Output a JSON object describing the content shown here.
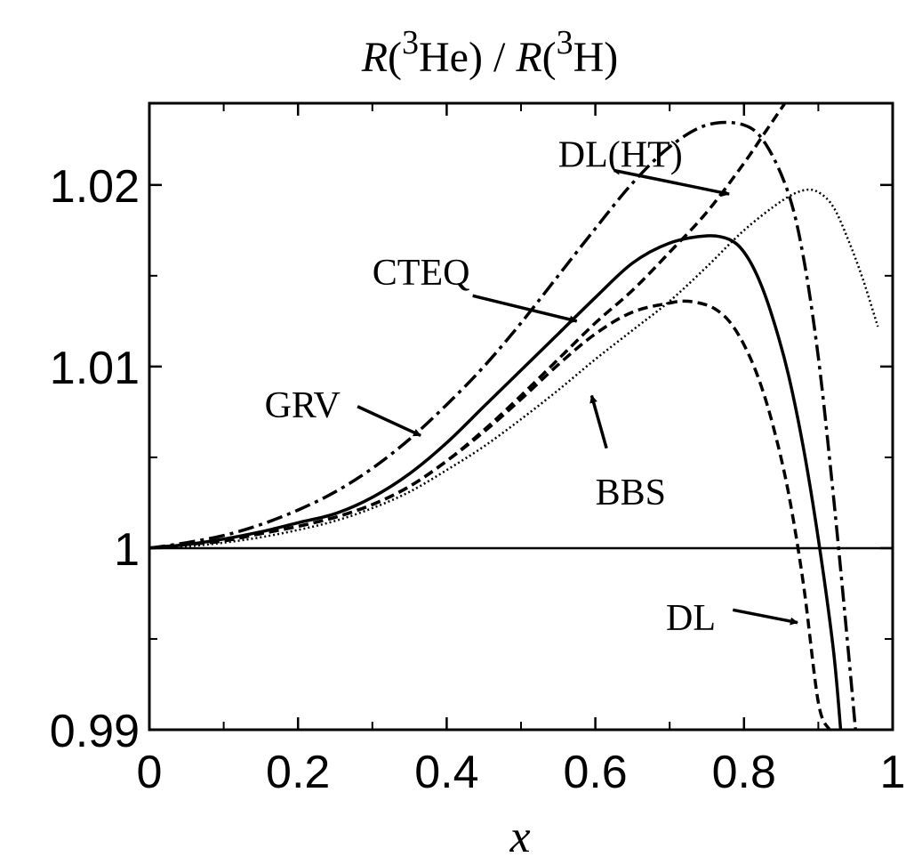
{
  "chart_data": {
    "type": "line",
    "title": {
      "num_func": "R",
      "num_paren_open": "(",
      "num_sup": "3",
      "num_nucleus": "He",
      "num_paren_close": ")",
      "divider": " / ",
      "den_func": "R",
      "den_paren_open": "(",
      "den_sup": "3",
      "den_nucleus": "H",
      "den_paren_close": ")"
    },
    "xlabel": "x",
    "ylabel": "",
    "xlim": [
      0,
      1
    ],
    "ylim": [
      0.99,
      1.0245
    ],
    "x_ticks": [
      {
        "value": 0,
        "label": "0"
      },
      {
        "value": 0.2,
        "label": "0.2"
      },
      {
        "value": 0.4,
        "label": "0.4"
      },
      {
        "value": 0.6,
        "label": "0.6"
      },
      {
        "value": 0.8,
        "label": "0.8"
      },
      {
        "value": 1,
        "label": "1"
      }
    ],
    "x_minor_ticks": [
      0.1,
      0.3,
      0.5,
      0.7,
      0.9
    ],
    "y_ticks": [
      {
        "value": 0.99,
        "label": "0.99"
      },
      {
        "value": 1.0,
        "label": "1"
      },
      {
        "value": 1.01,
        "label": "1.01"
      },
      {
        "value": 1.02,
        "label": "1.02"
      }
    ],
    "y_minor_ticks": [
      0.995,
      1.005,
      1.015
    ],
    "reference_line": 1.0,
    "grid": false,
    "series": [
      {
        "name": "GRV",
        "style": "dash-dot",
        "x": [
          0,
          0.05,
          0.1,
          0.15,
          0.2,
          0.25,
          0.3,
          0.35,
          0.4,
          0.45,
          0.5,
          0.55,
          0.6,
          0.65,
          0.7,
          0.75,
          0.8,
          0.83,
          0.86,
          0.88,
          0.9,
          0.92,
          0.94,
          0.95
        ],
        "y": [
          1.0,
          1.0003,
          1.0007,
          1.0013,
          1.0021,
          1.0031,
          1.0044,
          1.006,
          1.0079,
          1.01,
          1.0124,
          1.015,
          1.0176,
          1.0201,
          1.0221,
          1.0233,
          1.0233,
          1.0222,
          1.0195,
          1.016,
          1.0105,
          1.003,
          0.9945,
          0.99
        ]
      },
      {
        "name": "CTEQ",
        "style": "solid",
        "x": [
          0,
          0.05,
          0.1,
          0.15,
          0.2,
          0.25,
          0.3,
          0.35,
          0.4,
          0.45,
          0.5,
          0.55,
          0.6,
          0.65,
          0.7,
          0.75,
          0.78,
          0.8,
          0.82,
          0.84,
          0.86,
          0.88,
          0.9,
          0.92,
          0.93
        ],
        "y": [
          1.0,
          1.0002,
          1.0005,
          1.0009,
          1.0014,
          1.0019,
          1.0028,
          1.0041,
          1.0058,
          1.0078,
          1.0098,
          1.0118,
          1.0138,
          1.0157,
          1.0168,
          1.0172,
          1.017,
          1.0163,
          1.0148,
          1.0125,
          1.0095,
          1.0055,
          1.0005,
          0.9945,
          0.99
        ]
      },
      {
        "name": "DL",
        "style": "dashed",
        "x": [
          0,
          0.05,
          0.1,
          0.15,
          0.2,
          0.25,
          0.3,
          0.35,
          0.4,
          0.45,
          0.5,
          0.55,
          0.6,
          0.65,
          0.7,
          0.72,
          0.74,
          0.76,
          0.78,
          0.8,
          0.82,
          0.84,
          0.86,
          0.88,
          0.9,
          0.915
        ],
        "y": [
          1.0,
          1.0002,
          1.0004,
          1.0008,
          1.0012,
          1.0017,
          1.0024,
          1.0034,
          1.0048,
          1.0064,
          1.0082,
          1.0101,
          1.0118,
          1.013,
          1.0135,
          1.0136,
          1.0135,
          1.0132,
          1.0125,
          1.0112,
          1.0093,
          1.0066,
          1.003,
          0.998,
          0.9915,
          0.99
        ]
      },
      {
        "name": "DL(HT)",
        "style": "dashed",
        "x": [
          0,
          0.05,
          0.1,
          0.15,
          0.2,
          0.25,
          0.3,
          0.35,
          0.4,
          0.45,
          0.5,
          0.55,
          0.6,
          0.65,
          0.7,
          0.75,
          0.8,
          0.83,
          0.86
        ],
        "y": [
          1.0,
          1.0002,
          1.0004,
          1.0008,
          1.0012,
          1.0017,
          1.0024,
          1.0034,
          1.0048,
          1.0065,
          1.0084,
          1.0104,
          1.0124,
          1.0142,
          1.0163,
          1.0185,
          1.0212,
          1.023,
          1.0248
        ]
      },
      {
        "name": "BBS",
        "style": "dotted",
        "x": [
          0,
          0.05,
          0.1,
          0.15,
          0.2,
          0.25,
          0.3,
          0.35,
          0.4,
          0.45,
          0.5,
          0.55,
          0.6,
          0.65,
          0.7,
          0.75,
          0.8,
          0.85,
          0.88,
          0.9,
          0.92,
          0.94,
          0.96,
          0.98
        ],
        "y": [
          1.0,
          1.0001,
          1.0003,
          1.0006,
          1.001,
          1.0015,
          1.0022,
          1.0031,
          1.0043,
          1.0056,
          1.0071,
          1.0087,
          1.0104,
          1.012,
          1.0136,
          1.0155,
          1.0175,
          1.0191,
          1.0197,
          1.0196,
          1.0188,
          1.017,
          1.0148,
          1.0122
        ]
      }
    ],
    "annotations": [
      {
        "text": "DL(HT)",
        "text_x": 0.55,
        "text_y": 1.021,
        "arrow_from": [
          0.625,
          1.0208
        ],
        "arrow_to": [
          0.78,
          1.0195
        ]
      },
      {
        "text": "CTEQ",
        "text_x": 0.3,
        "text_y": 1.0145,
        "arrow_from": [
          0.435,
          1.0139
        ],
        "arrow_to": [
          0.575,
          1.0125
        ]
      },
      {
        "text": "GRV",
        "text_x": 0.155,
        "text_y": 1.0072,
        "arrow_from": [
          0.28,
          1.0078
        ],
        "arrow_to": [
          0.365,
          1.0062
        ]
      },
      {
        "text": "BBS",
        "text_x": 0.6,
        "text_y": 1.0024,
        "arrow_from": [
          0.615,
          1.0055
        ],
        "arrow_to": [
          0.595,
          1.0084
        ]
      },
      {
        "text": "DL",
        "text_x": 0.695,
        "text_y": 0.9955,
        "arrow_from": [
          0.785,
          0.9966
        ],
        "arrow_to": [
          0.872,
          0.9959
        ]
      }
    ]
  }
}
